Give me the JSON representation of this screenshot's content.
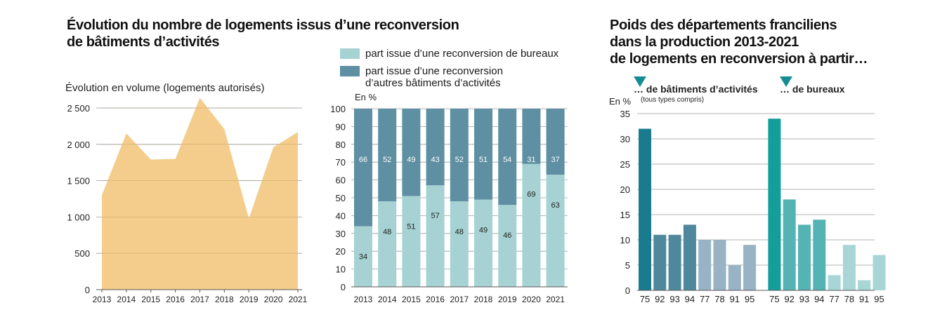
{
  "left": {
    "title_line1": "Évolution du nombre de logements issus d’une reconversion",
    "title_line2": "de bâtiments d’activités",
    "subtitle": "Évolution en volume (logements autorisés)",
    "chart_data": {
      "type": "area",
      "x": [
        "2013",
        "2014",
        "2015",
        "2016",
        "2017",
        "2018",
        "2019",
        "2020",
        "2021"
      ],
      "values": [
        1300,
        2150,
        1790,
        1800,
        2640,
        2210,
        980,
        1960,
        2170
      ],
      "ylim": [
        0,
        2500
      ],
      "yticks": [
        0,
        500,
        1000,
        1500,
        2000,
        2500
      ],
      "ytick_labels": [
        "0",
        "500",
        "1 000",
        "1 500",
        "2 000",
        "2 500"
      ],
      "color": "#f3c982"
    }
  },
  "middle": {
    "legend": [
      {
        "label_lines": [
          "part issue d’une reconversion de bureaux"
        ],
        "color": "#a6d2d3"
      },
      {
        "label_lines": [
          "part issue d’une reconversion",
          "d’autres bâtiments d’activités"
        ],
        "color": "#5e8fa2"
      }
    ],
    "unit": "En %",
    "chart_data": {
      "type": "bar",
      "stacked": true,
      "categories": [
        "2013",
        "2014",
        "2015",
        "2016",
        "2017",
        "2018",
        "2019",
        "2020",
        "2021"
      ],
      "series": [
        {
          "name": "part issue d’une reconversion de bureaux",
          "color": "#a6d2d3",
          "values": [
            34,
            48,
            51,
            57,
            48,
            49,
            46,
            69,
            63
          ]
        },
        {
          "name": "part issue d’une reconversion d’autres bâtiments d’activités",
          "color": "#5e8fa2",
          "values": [
            66,
            52,
            49,
            43,
            52,
            51,
            54,
            31,
            37
          ]
        }
      ],
      "ylim": [
        0,
        100
      ],
      "yticks": [
        0,
        10,
        20,
        30,
        40,
        50,
        60,
        70,
        80,
        90,
        100
      ]
    }
  },
  "right": {
    "title_lines": [
      "Poids des départements franciliens",
      "dans la production 2013-2021",
      "de logements en reconversion à partir…"
    ],
    "group1_label": "… de bâtiments d’activités",
    "group1_note": "(tous types compris)",
    "group2_label": "… de bureaux",
    "marker_color": "#138d93",
    "unit": "En %",
    "chart_data": {
      "type": "bar",
      "groups": [
        {
          "name": "… de bâtiments d’activités",
          "categories": [
            "75",
            "92",
            "93",
            "94",
            "77",
            "78",
            "91",
            "95"
          ],
          "values": [
            32,
            11,
            11,
            13,
            10,
            10,
            5,
            9
          ],
          "colors": [
            "#1a7a8e",
            "#4f889c",
            "#4f889c",
            "#4f889c",
            "#98b3c4",
            "#98b3c4",
            "#98b3c4",
            "#98b3c4"
          ]
        },
        {
          "name": "… de bureaux",
          "categories": [
            "75",
            "92",
            "93",
            "94",
            "77",
            "78",
            "91",
            "95"
          ],
          "values": [
            34,
            18,
            13,
            14,
            3,
            9,
            2,
            7
          ],
          "colors": [
            "#139e9b",
            "#55b4b3",
            "#55b4b3",
            "#55b4b3",
            "#a8d6d6",
            "#a8d6d6",
            "#a8d6d6",
            "#a8d6d6"
          ]
        }
      ],
      "ylim": [
        0,
        35
      ],
      "yticks": [
        0,
        5,
        10,
        15,
        20,
        25,
        30,
        35
      ]
    }
  }
}
